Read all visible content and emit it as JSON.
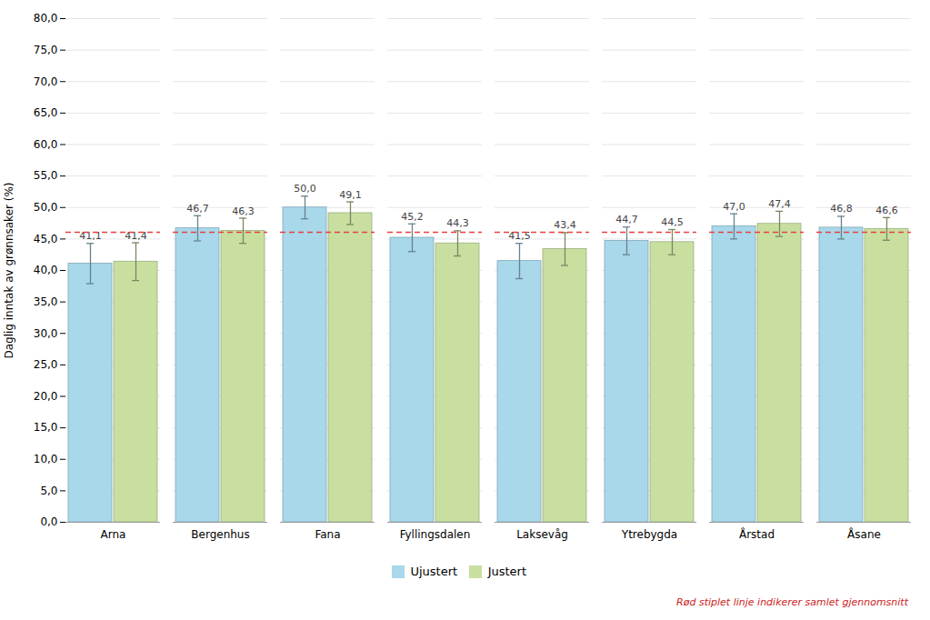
{
  "chart_data": {
    "type": "bar",
    "categories": [
      "Arna",
      "Bergenhus",
      "Fana",
      "Fyllingsdalen",
      "Laksevåg",
      "Ytrebygda",
      "Årstad",
      "Åsane"
    ],
    "series": [
      {
        "name": "Ujustert",
        "color": "#A8D8EA",
        "values": [
          41.1,
          46.7,
          50.0,
          45.2,
          41.5,
          44.7,
          47.0,
          46.8
        ],
        "value_labels": [
          "41,1",
          "46,7",
          "50,0",
          "45,2",
          "41,5",
          "44,7",
          "47,0",
          "46,8"
        ],
        "errors": [
          3.2,
          2.0,
          1.8,
          2.2,
          2.8,
          2.2,
          2.0,
          1.8
        ]
      },
      {
        "name": "Justert",
        "color": "#C8DFA0",
        "values": [
          41.4,
          46.3,
          49.1,
          44.3,
          43.4,
          44.5,
          47.4,
          46.6
        ],
        "value_labels": [
          "41,4",
          "46,3",
          "49,1",
          "44,3",
          "43,4",
          "44,5",
          "47,4",
          "46,6"
        ],
        "errors": [
          3.0,
          2.0,
          1.8,
          2.0,
          2.6,
          2.0,
          2.0,
          1.8
        ]
      }
    ],
    "reference_line": {
      "value": 46.05,
      "color": "#E84040",
      "line_style": "dashed"
    },
    "ylabel": "Daglig inntak av grønnsaker (%)",
    "ylim": [
      0,
      80
    ],
    "yticks": [
      {
        "value": 0,
        "label": "0,0"
      },
      {
        "value": 5,
        "label": "5,0"
      },
      {
        "value": 10,
        "label": "10,0"
      },
      {
        "value": 15,
        "label": "15,0"
      },
      {
        "value": 20,
        "label": "20,0"
      },
      {
        "value": 25,
        "label": "25,0"
      },
      {
        "value": 30,
        "label": "30,0"
      },
      {
        "value": 35,
        "label": "35,0"
      },
      {
        "value": 40,
        "label": "40,0"
      },
      {
        "value": 45,
        "label": "45,0"
      },
      {
        "value": 50,
        "label": "50,0"
      },
      {
        "value": 55,
        "label": "55,0"
      },
      {
        "value": 60,
        "label": "60,0"
      },
      {
        "value": 65,
        "label": "65,0"
      },
      {
        "value": 70,
        "label": "70,0"
      },
      {
        "value": 75,
        "label": "75,0"
      },
      {
        "value": 80,
        "label": "80,0"
      }
    ],
    "grid": true,
    "legend": "bottom",
    "data_labels": true,
    "annotations": [
      {
        "text": "Rød stiplet linje indikerer samlet gjennomsnitt",
        "color": "#CC2222"
      }
    ]
  }
}
